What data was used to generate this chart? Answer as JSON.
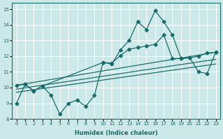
{
  "xlabel": "Humidex (Indice chaleur)",
  "bg_color": "#cce8e8",
  "grid_color": "#ffffff",
  "line_color": "#1a6b6a",
  "xlim": [
    -0.5,
    23.5
  ],
  "ylim": [
    8,
    15.4
  ],
  "xticks": [
    0,
    1,
    2,
    3,
    4,
    5,
    6,
    7,
    8,
    9,
    10,
    11,
    12,
    13,
    14,
    15,
    16,
    17,
    18,
    19,
    20,
    21,
    22,
    23
  ],
  "yticks": [
    8,
    9,
    10,
    11,
    12,
    13,
    14,
    15
  ],
  "series_zigzag_x": [
    0,
    1,
    2,
    3,
    4,
    5,
    6,
    7,
    8,
    9,
    10,
    11,
    12,
    13,
    14,
    15,
    16,
    17,
    18,
    19,
    20,
    21,
    22,
    23
  ],
  "series_zigzag_y": [
    9.0,
    10.2,
    9.8,
    10.1,
    9.5,
    8.3,
    9.0,
    9.2,
    8.8,
    9.5,
    11.6,
    11.5,
    12.4,
    13.0,
    14.2,
    13.7,
    14.9,
    14.2,
    13.35,
    11.85,
    11.9,
    11.0,
    10.9,
    12.25
  ],
  "series_smooth_x": [
    0,
    1,
    2,
    3,
    10,
    11,
    12,
    13,
    14,
    15,
    16,
    17,
    18,
    19,
    20,
    21,
    22,
    23
  ],
  "series_smooth_y": [
    10.15,
    10.2,
    9.8,
    10.1,
    11.6,
    11.55,
    12.05,
    12.45,
    12.55,
    12.65,
    12.75,
    13.35,
    11.85,
    11.85,
    11.9,
    12.0,
    12.2,
    12.25
  ],
  "trend1_x": [
    0,
    23
  ],
  "trend1_y": [
    10.15,
    12.25
  ],
  "trend2_x": [
    0,
    23
  ],
  "trend2_y": [
    9.9,
    11.8
  ],
  "trend3_x": [
    0,
    23
  ],
  "trend3_y": [
    9.7,
    11.5
  ]
}
